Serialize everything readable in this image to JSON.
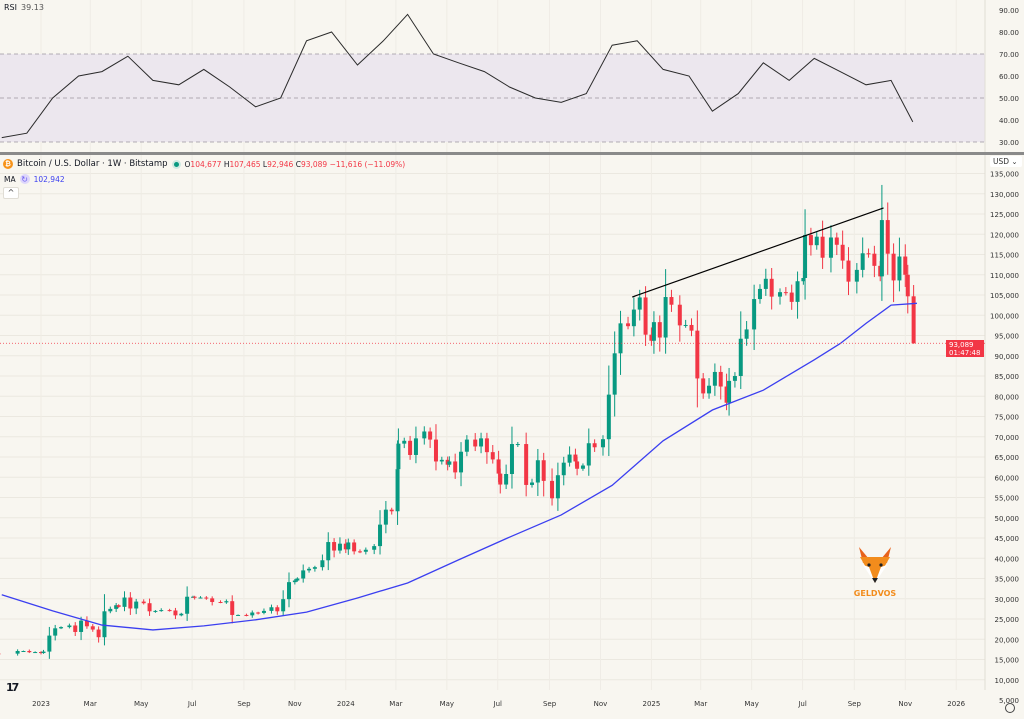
{
  "rsi_legend": {
    "label": "RSI",
    "value": "39.13"
  },
  "header": {
    "symbol": "Bitcoin / U.S. Dollar · 1W · Bitstamp",
    "open_label": "O",
    "open": "104,677",
    "high_label": "H",
    "high": "107,465",
    "low_label": "L",
    "low": "92,946",
    "close_label": "C",
    "close": "93,089",
    "change": "−11,616 (−11.09%)"
  },
  "ma_legend": {
    "label": "MA",
    "value": "102,942"
  },
  "currency": "USD ⌄",
  "collapse_icon": "^",
  "price_tag": {
    "price": "93,089",
    "countdown": "01:47:48"
  },
  "branding": {
    "text": "GELDVOS",
    "logo": "fox-icon"
  },
  "tv_logo": "17",
  "colors": {
    "up": "#089981",
    "down": "#f23645",
    "ma": "#3b3ff0",
    "rsi": "#2a2a2a",
    "rsi_band": "#ece7ee",
    "trendline": "#000000"
  },
  "chart_data": [
    {
      "type": "candlestick",
      "title": "Bitcoin / U.S. Dollar · 1W · Bitstamp",
      "y_scale": "linear",
      "ylim": [
        5000,
        135000
      ],
      "xlim": [
        "2022-11-20",
        "2026-03-01"
      ],
      "grid": true,
      "y_ticks": [
        "135,000",
        "130,000",
        "125,000",
        "120,000",
        "115,000",
        "110,000",
        "105,000",
        "100,000",
        "95,000",
        "90,000",
        "85,000",
        "80,000",
        "75,000",
        "70,000",
        "65,000",
        "60,000",
        "55,000",
        "50,000",
        "45,000",
        "40,000",
        "35,000",
        "30,000",
        "25,000",
        "20,000",
        "15,000",
        "10,000",
        "5,000"
      ],
      "x_ticks": [
        [
          "2023-01-01",
          "2023"
        ],
        [
          "2023-03-01",
          "Mar"
        ],
        [
          "2023-05-01",
          "May"
        ],
        [
          "2023-07-01",
          "Jul"
        ],
        [
          "2023-09-01",
          "Sep"
        ],
        [
          "2023-11-01",
          "Nov"
        ],
        [
          "2024-01-01",
          "2024"
        ],
        [
          "2024-03-01",
          "Mar"
        ],
        [
          "2024-05-01",
          "May"
        ],
        [
          "2024-07-01",
          "Jul"
        ],
        [
          "2024-09-01",
          "Sep"
        ],
        [
          "2024-11-01",
          "Nov"
        ],
        [
          "2025-01-01",
          "2025"
        ],
        [
          "2025-03-01",
          "Mar"
        ],
        [
          "2025-05-01",
          "May"
        ],
        [
          "2025-07-01",
          "Jul"
        ],
        [
          "2025-09-01",
          "Sep"
        ],
        [
          "2025-11-01",
          "Nov"
        ],
        [
          "2026-01-01",
          "2026"
        ]
      ],
      "weekly_closes": [
        [
          "2022-11",
          [
            16500,
            16450
          ]
        ],
        [
          "2022-12",
          [
            17100,
            17100,
            16800,
            16840,
            16600
          ]
        ],
        [
          "2023-01",
          [
            16950,
            20900,
            22700,
            23000
          ]
        ],
        [
          "2023-02",
          [
            23400,
            21800,
            24600,
            23200
          ]
        ],
        [
          "2023-03",
          [
            22400,
            20500,
            26900,
            27500,
            28400
          ]
        ],
        [
          "2023-04",
          [
            28000,
            30300,
            27600,
            29300
          ]
        ],
        [
          "2023-05",
          [
            28900,
            26900,
            27000,
            27200
          ]
        ],
        [
          "2023-06",
          [
            27100,
            25900,
            26300,
            30500,
            30500
          ]
        ],
        [
          "2023-07",
          [
            30300,
            30300,
            30100,
            29200
          ]
        ],
        [
          "2023-08",
          [
            29100,
            29400,
            26000,
            26000
          ]
        ],
        [
          "2023-09",
          [
            25900,
            26600,
            26500,
            27000
          ]
        ],
        [
          "2023-10",
          [
            27900,
            26900,
            29900,
            34100,
            34500
          ]
        ],
        [
          "2023-11",
          [
            35000,
            37000,
            37400,
            37800
          ]
        ],
        [
          "2023-12",
          [
            39500,
            44000,
            41900,
            43600,
            42200
          ]
        ],
        [
          "2024-01",
          [
            43900,
            41700,
            41600,
            42100
          ]
        ],
        [
          "2024-02",
          [
            43000,
            48300,
            52000,
            51600,
            62000
          ]
        ],
        [
          "2024-03",
          [
            68300,
            69000,
            65500,
            69600
          ]
        ],
        [
          "2024-04",
          [
            71300,
            69300,
            63900,
            64300,
            63100
          ]
        ],
        [
          "2024-05",
          [
            63900,
            61200,
            66300,
            69300
          ]
        ],
        [
          "2024-06",
          [
            67600,
            69600,
            66200,
            64400,
            60900
          ]
        ],
        [
          "2024-07",
          [
            58200,
            60800,
            68200,
            68200
          ]
        ],
        [
          "2024-08",
          [
            58100,
            58700,
            64200,
            59100
          ]
        ],
        [
          "2024-09",
          [
            54800,
            60500,
            63600,
            65600,
            63900
          ]
        ],
        [
          "2024-10",
          [
            62100,
            62900,
            68400,
            67400
          ]
        ],
        [
          "2024-11",
          [
            69400,
            80400,
            90600,
            98000
          ]
        ],
        [
          "2024-12",
          [
            97300,
            101400,
            104400,
            95200,
            93700
          ]
        ],
        [
          "2025-01",
          [
            98300,
            94500,
            104500,
            102600
          ]
        ],
        [
          "2025-02",
          [
            97500,
            97600,
            96200,
            84400
          ]
        ],
        [
          "2025-03",
          [
            80700,
            82600,
            86000,
            82400,
            78400
          ]
        ],
        [
          "2025-04",
          [
            83800,
            85000,
            94200,
            96500
          ]
        ],
        [
          "2025-05",
          [
            104000,
            106500,
            109000,
            104600
          ]
        ],
        [
          "2025-06",
          [
            105700,
            105600,
            103300,
            108400,
            109200
          ]
        ],
        [
          "2025-07",
          [
            119800,
            117300,
            119400,
            114200
          ]
        ],
        [
          "2025-08",
          [
            119200,
            117400,
            113500,
            108300
          ]
        ],
        [
          "2025-09",
          [
            111200,
            115300,
            115200,
            112200,
            109600
          ]
        ],
        [
          "2025-10",
          [
            123500,
            115200,
            108600,
            114500,
            110000
          ]
        ],
        [
          "2025-11",
          [
            104677,
            93089
          ]
        ]
      ],
      "last_candle": {
        "open": 104677,
        "high": 107465,
        "low": 92946,
        "close": 93089
      },
      "ma": [
        [
          "2022-11",
          31000
        ],
        [
          "2023-01",
          27000
        ],
        [
          "2023-03",
          23500
        ],
        [
          "2023-05",
          22300
        ],
        [
          "2023-07",
          23300
        ],
        [
          "2023-09",
          24800
        ],
        [
          "2023-11",
          26700
        ],
        [
          "2024-01",
          30200
        ],
        [
          "2024-03",
          33900
        ],
        [
          "2024-05",
          39600
        ],
        [
          "2024-07",
          45200
        ],
        [
          "2024-09",
          50700
        ],
        [
          "2024-11",
          58000
        ],
        [
          "2025-01",
          69000
        ],
        [
          "2025-03",
          76600
        ],
        [
          "2025-05",
          81500
        ],
        [
          "2025-07",
          89000
        ],
        [
          "2025-08",
          93000
        ],
        [
          "2025-09",
          98000
        ],
        [
          "2025-10",
          102500
        ],
        [
          "2025-11",
          102942
        ]
      ],
      "trendline": [
        [
          "2024-12-09",
          104500
        ],
        [
          "2025-10-06",
          126500
        ]
      ]
    },
    {
      "type": "line",
      "title": "RSI",
      "ylim": [
        27,
        93
      ],
      "y_ticks": [
        "90.00",
        "80.00",
        "70.00",
        "60.00",
        "50.00",
        "40.00",
        "30.00"
      ],
      "band": [
        30,
        70
      ],
      "midline": 50,
      "values": [
        [
          "2022-11",
          32
        ],
        [
          "2022-12",
          34
        ],
        [
          "2023-01",
          50
        ],
        [
          "2023-02",
          60
        ],
        [
          "2023-03",
          62
        ],
        [
          "2023-04",
          69
        ],
        [
          "2023-05",
          58
        ],
        [
          "2023-06",
          56
        ],
        [
          "2023-07",
          63
        ],
        [
          "2023-08",
          55
        ],
        [
          "2023-09",
          46
        ],
        [
          "2023-10",
          50
        ],
        [
          "2023-11",
          76
        ],
        [
          "2023-12",
          80
        ],
        [
          "2024-01",
          65
        ],
        [
          "2024-02",
          76
        ],
        [
          "2024-03",
          88
        ],
        [
          "2024-04",
          70
        ],
        [
          "2024-05",
          66
        ],
        [
          "2024-06",
          62
        ],
        [
          "2024-07",
          55
        ],
        [
          "2024-08",
          50
        ],
        [
          "2024-09",
          48
        ],
        [
          "2024-10",
          52
        ],
        [
          "2024-11",
          74
        ],
        [
          "2024-12",
          76
        ],
        [
          "2025-01",
          63
        ],
        [
          "2025-02",
          60
        ],
        [
          "2025-03",
          44
        ],
        [
          "2025-04",
          52
        ],
        [
          "2025-05",
          66
        ],
        [
          "2025-06",
          58
        ],
        [
          "2025-07",
          68
        ],
        [
          "2025-08",
          62
        ],
        [
          "2025-09",
          56
        ],
        [
          "2025-10",
          58
        ],
        [
          "2025-11",
          39.13
        ]
      ]
    }
  ]
}
